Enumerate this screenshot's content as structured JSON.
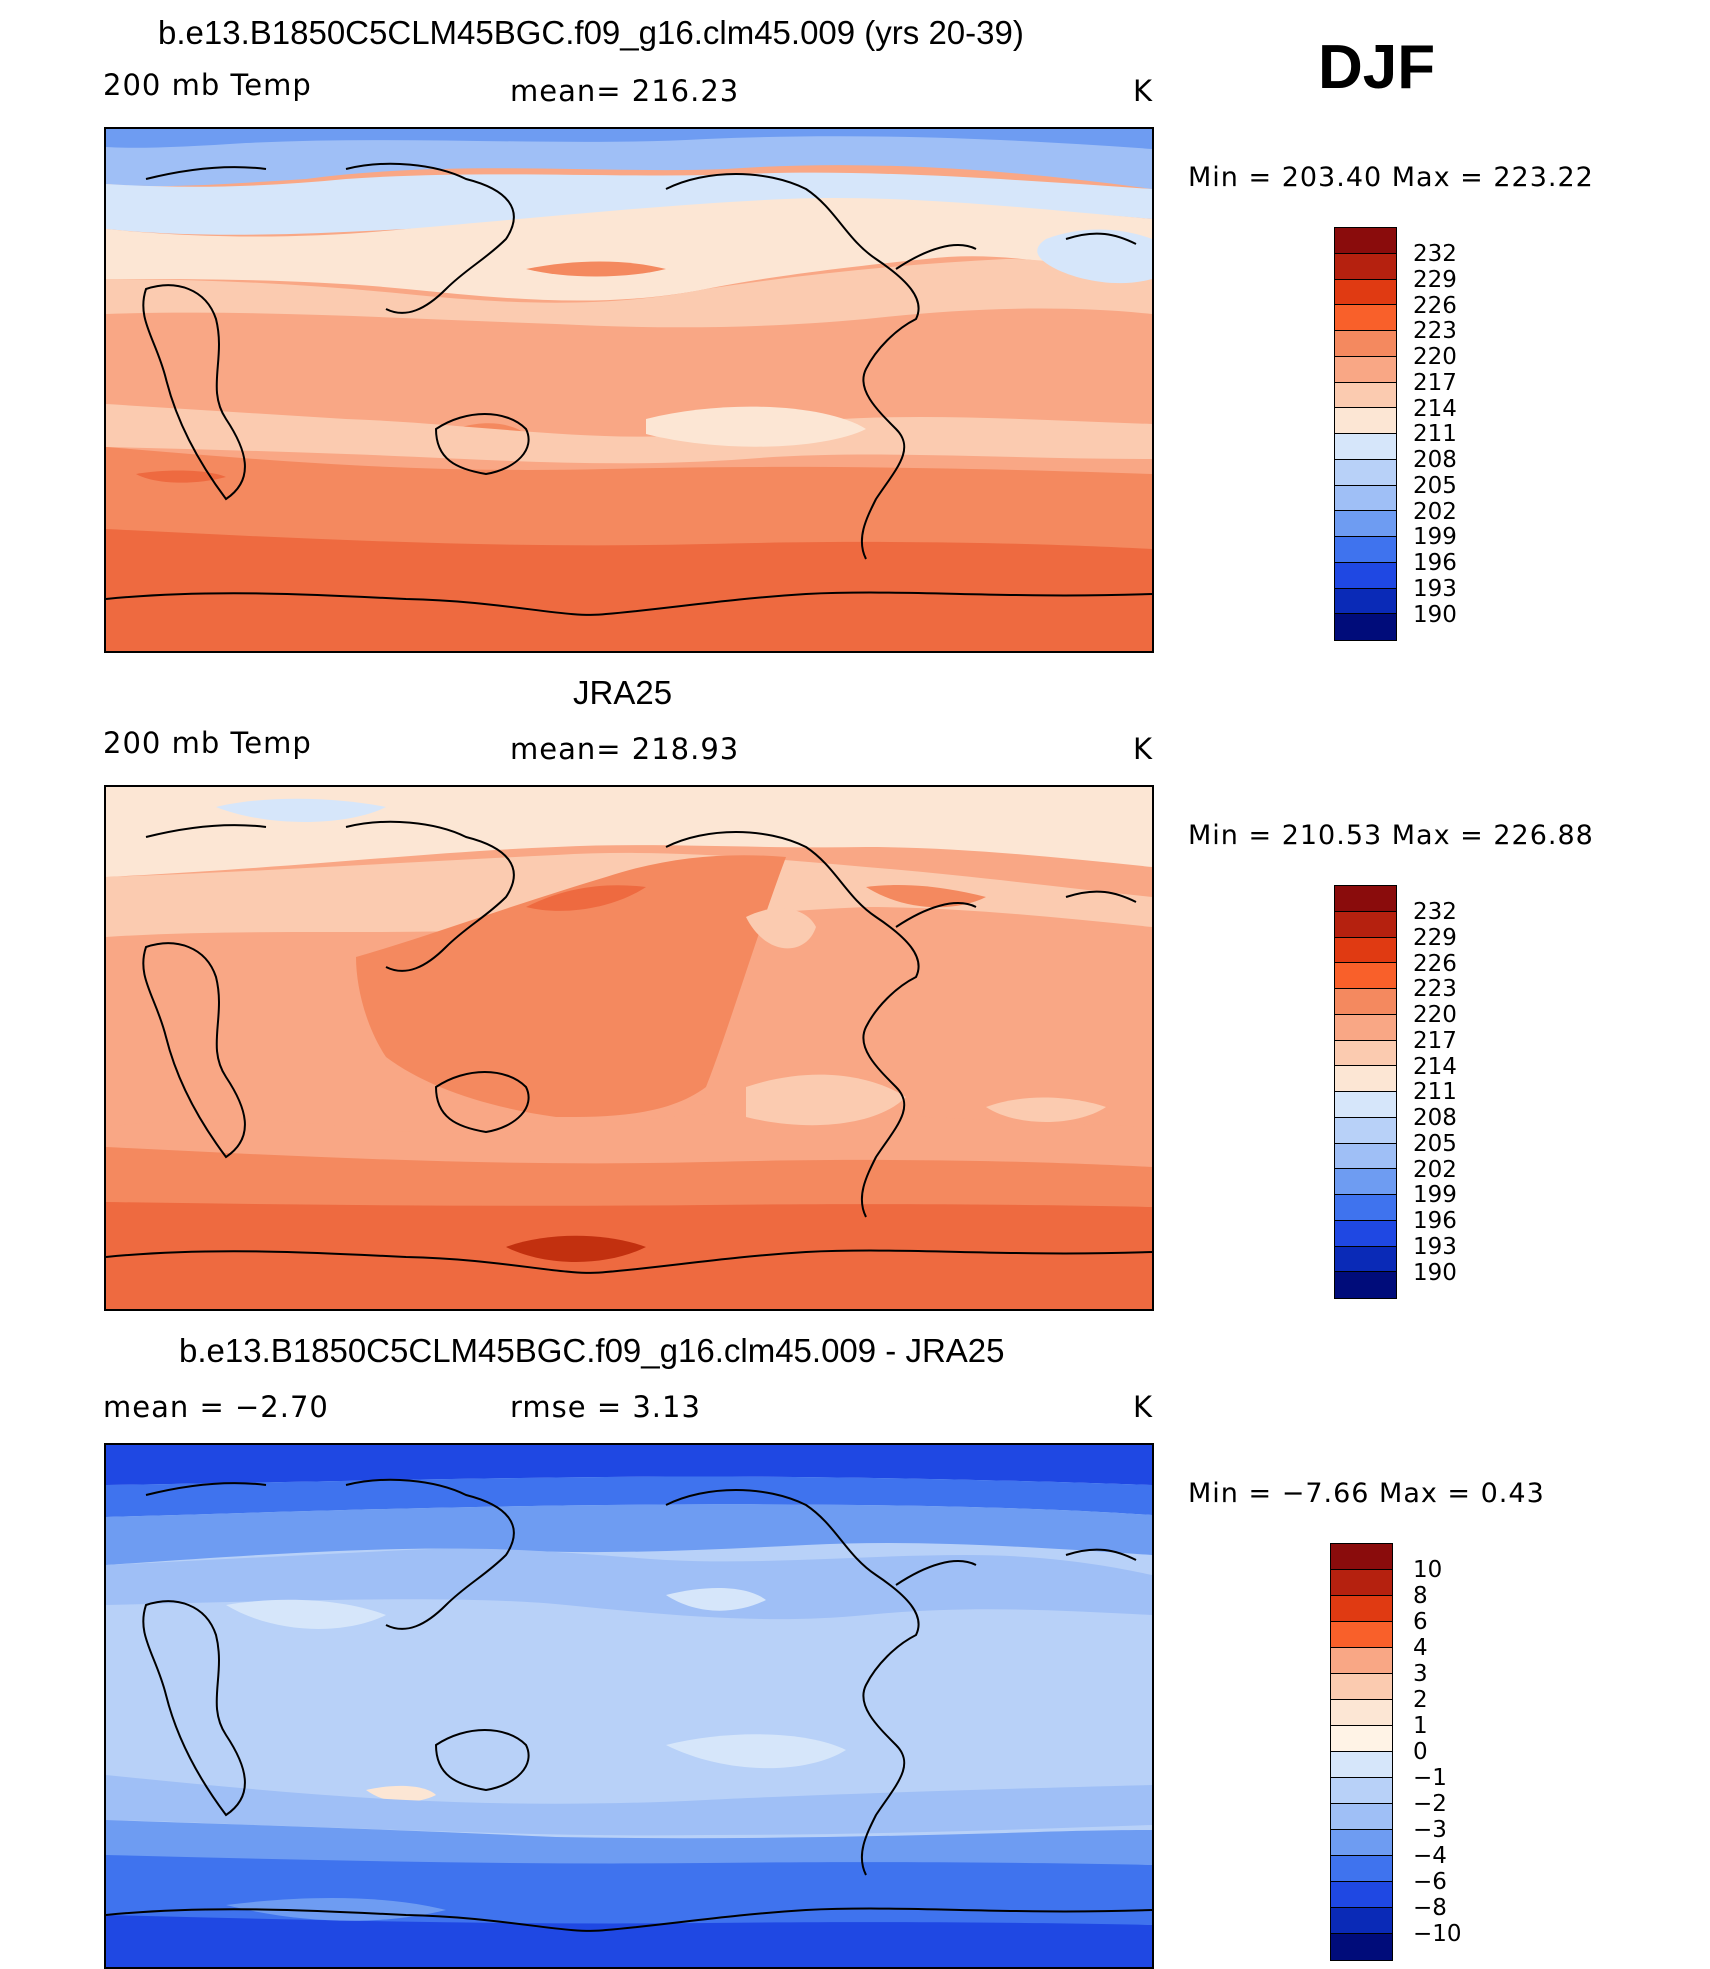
{
  "season": "DJF",
  "panels": [
    {
      "title": "b.e13.B1850C5CLM45BGC.f09_g16.clm45.009 (yrs 20-39)",
      "left_label": "200 mb Temp",
      "center_label": "mean=  216.23",
      "right_label": "K",
      "minmax": "Min  =  203.40  Max  =  223.22",
      "bands_description_colors": [
        "#9fbff6",
        "#d6e6fa",
        "#fce6d4",
        "#fbcbb0",
        "#f9a785",
        "#f4895f",
        "#ee6a40"
      ],
      "colorbar": {
        "labels": [
          "232",
          "229",
          "226",
          "223",
          "220",
          "217",
          "214",
          "211",
          "208",
          "205",
          "202",
          "199",
          "196",
          "193",
          "190"
        ],
        "colors": [
          "#8a0c0c",
          "#b5210f",
          "#e03a12",
          "#f9602a",
          "#f4895f",
          "#f9a785",
          "#fbcbb0",
          "#fce6d4",
          "#d6e6fa",
          "#b8d1f8",
          "#9fbff6",
          "#6e9cf2",
          "#3f73ee",
          "#1f48e3",
          "#0a2ab7",
          "#000c7a"
        ]
      }
    },
    {
      "title": "JRA25",
      "left_label": "200 mb Temp",
      "center_label": "mean=  218.93",
      "right_label": "K",
      "minmax": "Min  =  210.53  Max  =  226.88",
      "colorbar": {
        "labels": [
          "232",
          "229",
          "226",
          "223",
          "220",
          "217",
          "214",
          "211",
          "208",
          "205",
          "202",
          "199",
          "196",
          "193",
          "190"
        ],
        "colors": [
          "#8a0c0c",
          "#b5210f",
          "#e03a12",
          "#f9602a",
          "#f4895f",
          "#f9a785",
          "#fbcbb0",
          "#fce6d4",
          "#d6e6fa",
          "#b8d1f8",
          "#9fbff6",
          "#6e9cf2",
          "#3f73ee",
          "#1f48e3",
          "#0a2ab7",
          "#000c7a"
        ]
      }
    },
    {
      "title": "b.e13.B1850C5CLM45BGC.f09_g16.clm45.009 - JRA25",
      "left_label": "mean  =    −2.70",
      "center_label": "rmse  =      3.13",
      "right_label": "K",
      "minmax": "Min  =    −7.66  Max  =      0.43",
      "colorbar": {
        "labels": [
          "10",
          "8",
          "6",
          "4",
          "3",
          "2",
          "1",
          "0",
          "−1",
          "−2",
          "−3",
          "−4",
          "−6",
          "−8",
          "−10"
        ],
        "colors": [
          "#8a0c0c",
          "#b5210f",
          "#e03a12",
          "#f9602a",
          "#f9a785",
          "#fbcbb0",
          "#fce6d4",
          "#fff3e6",
          "#d6e6fa",
          "#b8d1f8",
          "#9fbff6",
          "#6e9cf2",
          "#3f73ee",
          "#1f48e3",
          "#0a2ab7",
          "#000c7a"
        ]
      }
    }
  ]
}
